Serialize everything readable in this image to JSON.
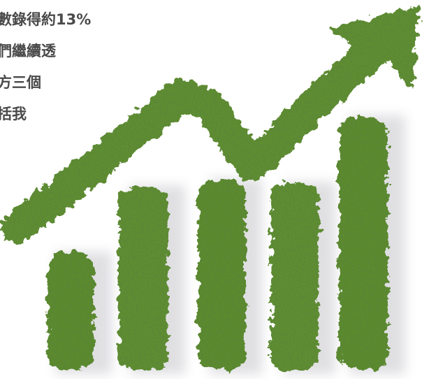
{
  "text": {
    "lines": [
      "數錄得約13%",
      "們繼續透",
      "方三個",
      "括我"
    ]
  }
}
